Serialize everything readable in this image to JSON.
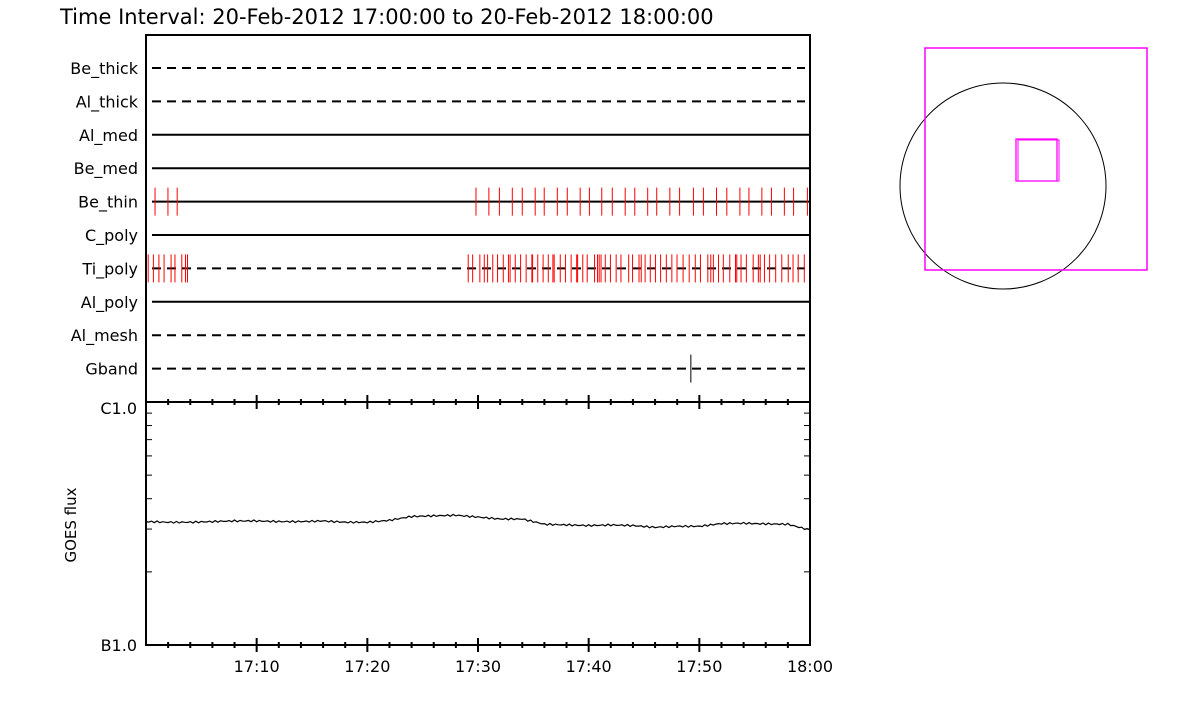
{
  "title": "Time Interval: 20-Feb-2012 17:00:00 to 20-Feb-2012 18:00:00",
  "colors": {
    "axis": "#000000",
    "event": "#ff0000",
    "fov": "#ff00ff",
    "disk": "#000000"
  },
  "chart_data": [
    {
      "type": "event-timeline",
      "xlim": [
        "17:00:00",
        "18:00:00"
      ],
      "channels": [
        {
          "name": "Be_thick",
          "line": "dashed",
          "events": []
        },
        {
          "name": "Al_thick",
          "line": "dashed",
          "events": []
        },
        {
          "name": "Al_med",
          "line": "solid",
          "events": []
        },
        {
          "name": "Be_med",
          "line": "solid",
          "events": []
        },
        {
          "name": "Be_thin",
          "line": "solid",
          "event_color": "#ff0000",
          "events": [
            "17:00:49",
            "17:01:59",
            "17:02:49",
            "17:29:49",
            "17:30:59",
            "17:31:56",
            "17:33:06",
            "17:34:00",
            "17:35:10",
            "17:35:59",
            "17:37:10",
            "17:38:04",
            "17:39:14",
            "17:40:04",
            "17:41:11",
            "17:42:08",
            "17:43:18",
            "17:44:10",
            "17:45:20",
            "17:46:09",
            "17:47:20",
            "17:48:13",
            "17:49:28",
            "17:50:22",
            "17:51:33",
            "17:52:29",
            "17:53:40",
            "17:54:29",
            "17:55:39",
            "17:56:31",
            "17:57:41",
            "17:58:31",
            "17:59:46"
          ]
        },
        {
          "name": "C_poly",
          "line": "solid",
          "events": []
        },
        {
          "name": "Ti_poly",
          "line": "dashed",
          "event_color": "#ff0000",
          "events": [
            "17:00:12",
            "17:00:40",
            "17:01:10",
            "17:01:38",
            "17:02:16",
            "17:02:37",
            "17:03:14",
            "17:03:34",
            "17:03:45",
            "17:29:07",
            "17:29:31",
            "17:30:10",
            "17:30:34",
            "17:30:52",
            "17:31:20",
            "17:31:46",
            "17:32:17",
            "17:32:45",
            "17:32:54",
            "17:33:22",
            "17:33:51",
            "17:34:21",
            "17:34:52",
            "17:34:56",
            "17:35:24",
            "17:35:53",
            "17:36:21",
            "17:36:46",
            "17:36:53",
            "17:37:26",
            "17:37:54",
            "17:38:25",
            "17:38:55",
            "17:39:00",
            "17:39:28",
            "17:39:52",
            "17:40:32",
            "17:40:48",
            "17:40:57",
            "17:41:07",
            "17:41:30",
            "17:41:58",
            "17:42:29",
            "17:42:55",
            "17:43:37",
            "17:43:58",
            "17:44:33",
            "17:44:45",
            "17:45:06",
            "17:45:34",
            "17:46:02",
            "17:46:30",
            "17:47:01",
            "17:47:31",
            "17:47:59",
            "17:48:32",
            "17:49:05",
            "17:49:38",
            "17:50:06",
            "17:50:46",
            "17:51:02",
            "17:51:16",
            "17:51:44",
            "17:52:10",
            "17:52:45",
            "17:53:16",
            "17:53:23",
            "17:53:46",
            "17:54:15",
            "17:54:52",
            "17:55:20",
            "17:55:30",
            "17:55:53",
            "17:56:21",
            "17:56:54",
            "17:57:27",
            "17:58:02",
            "17:58:28",
            "17:58:56",
            "17:59:29"
          ]
        },
        {
          "name": "Al_poly",
          "line": "solid",
          "events": []
        },
        {
          "name": "Al_mesh",
          "line": "dashed",
          "events": []
        },
        {
          "name": "Gband",
          "line": "dashed",
          "event_color": "#000000",
          "events": [
            "17:49:14"
          ]
        }
      ]
    },
    {
      "type": "line",
      "ylabel": "GOES flux",
      "yscale": "log",
      "ylim": [
        1e-07,
        1e-06
      ],
      "ytick_labels": [
        "B1.0",
        "C1.0"
      ],
      "xlim": [
        "17:00",
        "18:00"
      ],
      "xtick_labels": [
        "17:10",
        "17:20",
        "17:30",
        "17:40",
        "17:50",
        "18:00"
      ],
      "x": [
        "17:00",
        "17:02",
        "17:04",
        "17:06",
        "17:08",
        "17:10",
        "17:12",
        "17:14",
        "17:16",
        "17:18",
        "17:20",
        "17:22",
        "17:24",
        "17:26",
        "17:28",
        "17:30",
        "17:32",
        "17:34",
        "17:36",
        "17:38",
        "17:40",
        "17:42",
        "17:44",
        "17:46",
        "17:48",
        "17:50",
        "17:52",
        "17:54",
        "17:56",
        "17:58",
        "18:00"
      ],
      "values": [
        3.22e-07,
        3.2e-07,
        3.2e-07,
        3.22e-07,
        3.24e-07,
        3.24e-07,
        3.22e-07,
        3.22e-07,
        3.24e-07,
        3.2e-07,
        3.2e-07,
        3.26e-07,
        3.38e-07,
        3.4e-07,
        3.42e-07,
        3.36e-07,
        3.3e-07,
        3.3e-07,
        3.14e-07,
        3.12e-07,
        3.1e-07,
        3.12e-07,
        3.1e-07,
        3.05e-07,
        3.08e-07,
        3.08e-07,
        3.16e-07,
        3.17e-07,
        3.15e-07,
        3.14e-07,
        2.97e-07
      ]
    }
  ]
}
